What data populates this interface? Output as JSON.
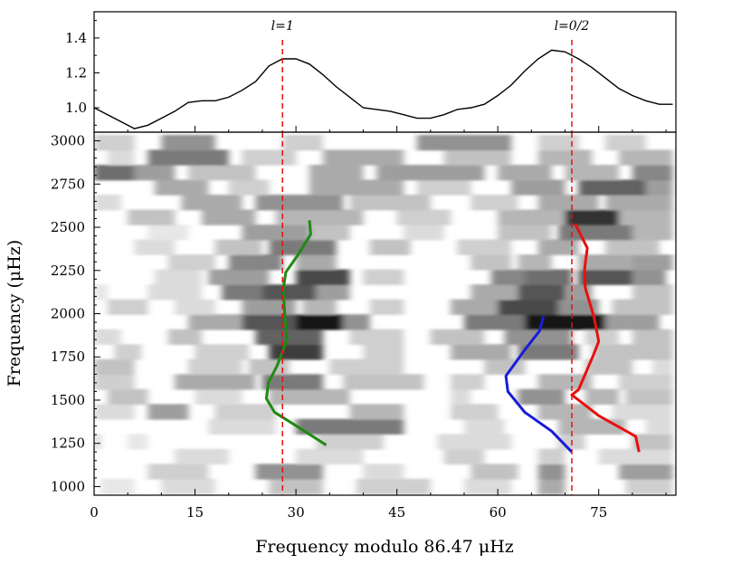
{
  "chart_data": [
    {
      "type": "line",
      "panel": "collapsed-power-profile",
      "x": [
        0,
        2,
        4,
        6,
        8,
        10,
        12,
        14,
        16,
        18,
        20,
        22,
        24,
        26,
        28,
        30,
        32,
        34,
        36,
        38,
        40,
        42,
        44,
        46,
        48,
        50,
        52,
        54,
        56,
        58,
        60,
        62,
        64,
        66,
        68,
        70,
        72,
        74,
        76,
        78,
        80,
        82,
        84,
        86
      ],
      "values": [
        1.0,
        0.96,
        0.92,
        0.88,
        0.9,
        0.94,
        0.98,
        1.03,
        1.04,
        1.04,
        1.06,
        1.1,
        1.15,
        1.24,
        1.28,
        1.28,
        1.25,
        1.19,
        1.12,
        1.06,
        1.0,
        0.99,
        0.98,
        0.96,
        0.94,
        0.94,
        0.96,
        0.99,
        1.0,
        1.02,
        1.07,
        1.13,
        1.21,
        1.28,
        1.33,
        1.32,
        1.28,
        1.23,
        1.17,
        1.11,
        1.07,
        1.04,
        1.02,
        1.02
      ],
      "xlim": [
        0,
        86.47
      ],
      "ylim": [
        0.86,
        1.55
      ],
      "yticks": [
        "1.0",
        "1.2",
        "1.4"
      ],
      "markers": [
        {
          "x": 28,
          "label": "l=1"
        },
        {
          "x": 71,
          "label": "l=0/2"
        }
      ]
    },
    {
      "type": "heatmap",
      "panel": "echelle-diagram",
      "xlabel": "Frequency modulo 86.47 μHz",
      "ylabel": "Frequency (μHz)",
      "xlim": [
        0,
        86.47
      ],
      "ylim": [
        950,
        3050
      ],
      "xticks": [
        "0",
        "15",
        "30",
        "45",
        "60",
        "75"
      ],
      "yticks": [
        "1000",
        "1250",
        "1500",
        "1750",
        "2000",
        "2250",
        "2500",
        "2750",
        "3000"
      ],
      "rows": [
        {
          "y": 1000,
          "cells": [
            [
              1,
              6,
              0.1
            ],
            [
              10,
              18,
              0.15
            ],
            [
              26,
              34,
              0.25
            ],
            [
              39,
              50,
              0.2
            ],
            [
              55,
              62,
              0.15
            ],
            [
              66,
              70,
              0.35
            ],
            [
              79,
              86,
              0.2
            ]
          ]
        },
        {
          "y": 1086,
          "cells": [
            [
              8,
              17,
              0.2
            ],
            [
              24,
              34,
              0.45
            ],
            [
              40,
              46,
              0.15
            ],
            [
              56,
              63,
              0.25
            ],
            [
              66,
              70,
              0.45
            ],
            [
              78,
              86,
              0.4
            ]
          ]
        },
        {
          "y": 1173,
          "cells": [
            [
              12,
              20,
              0.15
            ],
            [
              30,
              40,
              0.15
            ],
            [
              52,
              58,
              0.2
            ],
            [
              66,
              70,
              0.2
            ],
            [
              75,
              86,
              0.15
            ]
          ]
        },
        {
          "y": 1259,
          "cells": [
            [
              0,
              1,
              0.15
            ],
            [
              5,
              8,
              0.1
            ],
            [
              33,
              43,
              0.2
            ],
            [
              51,
              62,
              0.15
            ],
            [
              69,
              73,
              0.2
            ],
            [
              80,
              86,
              0.25
            ]
          ]
        },
        {
          "y": 1346,
          "cells": [
            [
              17,
              27,
              0.15
            ],
            [
              30,
              46,
              0.55
            ],
            [
              55,
              61,
              0.15
            ],
            [
              69,
              79,
              0.3
            ],
            [
              82,
              86,
              0.15
            ]
          ]
        },
        {
          "y": 1432,
          "cells": [
            [
              0,
              6,
              0.15
            ],
            [
              8,
              14,
              0.4
            ],
            [
              18,
              27,
              0.2
            ],
            [
              38,
              46,
              0.3
            ],
            [
              53,
              60,
              0.2
            ],
            [
              66,
              74,
              0.3
            ],
            [
              77,
              86,
              0.15
            ]
          ]
        },
        {
          "y": 1519,
          "cells": [
            [
              2,
              8,
              0.25
            ],
            [
              15,
              22,
              0.15
            ],
            [
              26,
              38,
              0.3
            ],
            [
              53,
              56,
              0.15
            ],
            [
              63,
              70,
              0.45
            ],
            [
              73,
              78,
              0.3
            ],
            [
              79,
              86,
              0.25
            ]
          ]
        },
        {
          "y": 1605,
          "cells": [
            [
              0,
              6,
              0.2
            ],
            [
              12,
              24,
              0.35
            ],
            [
              25,
              34,
              0.55
            ],
            [
              37,
              49,
              0.25
            ],
            [
              53,
              58,
              0.2
            ],
            [
              66,
              74,
              0.3
            ],
            [
              78,
              86,
              0.2
            ]
          ]
        },
        {
          "y": 1692,
          "cells": [
            [
              0,
              6,
              0.25
            ],
            [
              14,
              22,
              0.2
            ],
            [
              23,
              29,
              0.25
            ],
            [
              35,
              46,
              0.2
            ],
            [
              58,
              64,
              0.25
            ],
            [
              73,
              80,
              0.25
            ],
            [
              83,
              86,
              0.15
            ]
          ]
        },
        {
          "y": 1778,
          "cells": [
            [
              3,
              7,
              0.2
            ],
            [
              15,
              23,
              0.2
            ],
            [
              26,
              34,
              0.8
            ],
            [
              40,
              46,
              0.2
            ],
            [
              53,
              62,
              0.35
            ],
            [
              63,
              72,
              0.55
            ],
            [
              74,
              86,
              0.25
            ]
          ]
        },
        {
          "y": 1865,
          "cells": [
            [
              0,
              4,
              0.15
            ],
            [
              11,
              16,
              0.25
            ],
            [
              24,
              34,
              0.65
            ],
            [
              38,
              46,
              0.2
            ],
            [
              50,
              58,
              0.25
            ],
            [
              61,
              71,
              0.45
            ],
            [
              73,
              78,
              0.2
            ],
            [
              80,
              86,
              0.25
            ]
          ]
        },
        {
          "y": 1951,
          "cells": [
            [
              14,
              22,
              0.35
            ],
            [
              22,
              30,
              0.7
            ],
            [
              30,
              37,
              0.95
            ],
            [
              37,
              41,
              0.45
            ],
            [
              55,
              64,
              0.55
            ],
            [
              64,
              76,
              0.95
            ],
            [
              76,
              84,
              0.4
            ]
          ]
        },
        {
          "y": 2038,
          "cells": [
            [
              2,
              8,
              0.2
            ],
            [
              12,
              18,
              0.15
            ],
            [
              22,
              30,
              0.4
            ],
            [
              31,
              36,
              0.3
            ],
            [
              41,
              46,
              0.2
            ],
            [
              53,
              60,
              0.35
            ],
            [
              60,
              69,
              0.75
            ],
            [
              69,
              75,
              0.45
            ],
            [
              77,
              86,
              0.25
            ]
          ]
        },
        {
          "y": 2124,
          "cells": [
            [
              0,
              2,
              0.1
            ],
            [
              8,
              16,
              0.15
            ],
            [
              19,
              25,
              0.55
            ],
            [
              25,
              33,
              0.7
            ],
            [
              33,
              38,
              0.4
            ],
            [
              56,
              63,
              0.35
            ],
            [
              63,
              70,
              0.7
            ],
            [
              70,
              74,
              0.4
            ],
            [
              80,
              86,
              0.25
            ]
          ]
        },
        {
          "y": 2211,
          "cells": [
            [
              9,
              16,
              0.15
            ],
            [
              17,
              26,
              0.4
            ],
            [
              30,
              38,
              0.75
            ],
            [
              40,
              46,
              0.2
            ],
            [
              59,
              64,
              0.5
            ],
            [
              64,
              71,
              0.6
            ],
            [
              72,
              80,
              0.7
            ],
            [
              80,
              85,
              0.45
            ]
          ]
        },
        {
          "y": 2297,
          "cells": [
            [
              11,
              18,
              0.2
            ],
            [
              20,
              28,
              0.5
            ],
            [
              30,
              36,
              0.35
            ],
            [
              56,
              62,
              0.25
            ],
            [
              63,
              68,
              0.3
            ],
            [
              72,
              80,
              0.35
            ],
            [
              80,
              86,
              0.4
            ]
          ]
        },
        {
          "y": 2384,
          "cells": [
            [
              6,
              12,
              0.15
            ],
            [
              18,
              25,
              0.25
            ],
            [
              26,
              36,
              0.55
            ],
            [
              41,
              47,
              0.25
            ],
            [
              54,
              62,
              0.2
            ],
            [
              66,
              72,
              0.35
            ],
            [
              76,
              84,
              0.25
            ]
          ]
        },
        {
          "y": 2470,
          "cells": [
            [
              8,
              14,
              0.1
            ],
            [
              22,
              32,
              0.4
            ],
            [
              32,
              38,
              0.25
            ],
            [
              46,
              52,
              0.15
            ],
            [
              60,
              68,
              0.25
            ],
            [
              69,
              80,
              0.55
            ],
            [
              80,
              86,
              0.3
            ]
          ]
        },
        {
          "y": 2557,
          "cells": [
            [
              5,
              12,
              0.25
            ],
            [
              16,
              24,
              0.35
            ],
            [
              27,
              40,
              0.3
            ],
            [
              45,
              53,
              0.2
            ],
            [
              60,
              70,
              0.3
            ],
            [
              70,
              78,
              0.85
            ],
            [
              78,
              86,
              0.3
            ]
          ]
        },
        {
          "y": 2643,
          "cells": [
            [
              0,
              4,
              0.15
            ],
            [
              13,
              22,
              0.35
            ],
            [
              24,
              37,
              0.45
            ],
            [
              38,
              50,
              0.25
            ],
            [
              56,
              63,
              0.2
            ],
            [
              66,
              75,
              0.35
            ],
            [
              76,
              86,
              0.35
            ]
          ]
        },
        {
          "y": 2730,
          "cells": [
            [
              9,
              17,
              0.35
            ],
            [
              20,
              26,
              0.2
            ],
            [
              32,
              46,
              0.35
            ],
            [
              48,
              56,
              0.2
            ],
            [
              62,
              70,
              0.4
            ],
            [
              72,
              82,
              0.65
            ],
            [
              82,
              86,
              0.4
            ]
          ]
        },
        {
          "y": 2816,
          "cells": [
            [
              0,
              6,
              0.6
            ],
            [
              6,
              12,
              0.4
            ],
            [
              14,
              24,
              0.25
            ],
            [
              32,
              40,
              0.35
            ],
            [
              42,
              58,
              0.4
            ],
            [
              60,
              68,
              0.35
            ],
            [
              70,
              78,
              0.3
            ],
            [
              80,
              86,
              0.5
            ]
          ]
        },
        {
          "y": 2903,
          "cells": [
            [
              2,
              6,
              0.15
            ],
            [
              8,
              20,
              0.55
            ],
            [
              22,
              30,
              0.2
            ],
            [
              34,
              46,
              0.35
            ],
            [
              52,
              62,
              0.25
            ],
            [
              66,
              74,
              0.3
            ],
            [
              78,
              86,
              0.3
            ]
          ]
        },
        {
          "y": 2989,
          "cells": [
            [
              0,
              6,
              0.2
            ],
            [
              10,
              18,
              0.45
            ],
            [
              28,
              34,
              0.2
            ],
            [
              48,
              62,
              0.45
            ],
            [
              66,
              72,
              0.2
            ],
            [
              76,
              82,
              0.2
            ]
          ]
        }
      ],
      "series": [
        {
          "name": "l=1",
          "color": "#1f8a12",
          "x": [
            34.5,
            30.5,
            26.8,
            25.6,
            25.9,
            27.2,
            28.7,
            28.4,
            28.1,
            28.5,
            30.3,
            32.2,
            32.0
          ],
          "y": [
            1240,
            1340,
            1430,
            1510,
            1600,
            1700,
            1850,
            1960,
            2140,
            2240,
            2340,
            2460,
            2540
          ]
        },
        {
          "name": "l=2",
          "color": "#1a1adb",
          "x": [
            71.0,
            68.0,
            64.0,
            61.5,
            61.2,
            64.0,
            66.2,
            66.8
          ],
          "y": [
            1200,
            1320,
            1430,
            1550,
            1640,
            1790,
            1900,
            1985
          ]
        },
        {
          "name": "l=0",
          "color": "#e8100e",
          "x": [
            81.0,
            80.5,
            75.0,
            71.0,
            72.0,
            74.2,
            75.0,
            74.3,
            73.0,
            72.9,
            73.3,
            71.5
          ],
          "y": [
            1200,
            1290,
            1410,
            1530,
            1560,
            1760,
            1840,
            1980,
            2150,
            2260,
            2380,
            2520
          ]
        }
      ],
      "markers": [
        {
          "x": 28,
          "label": "l=1"
        },
        {
          "x": 71,
          "label": "l=0/2"
        }
      ]
    }
  ]
}
